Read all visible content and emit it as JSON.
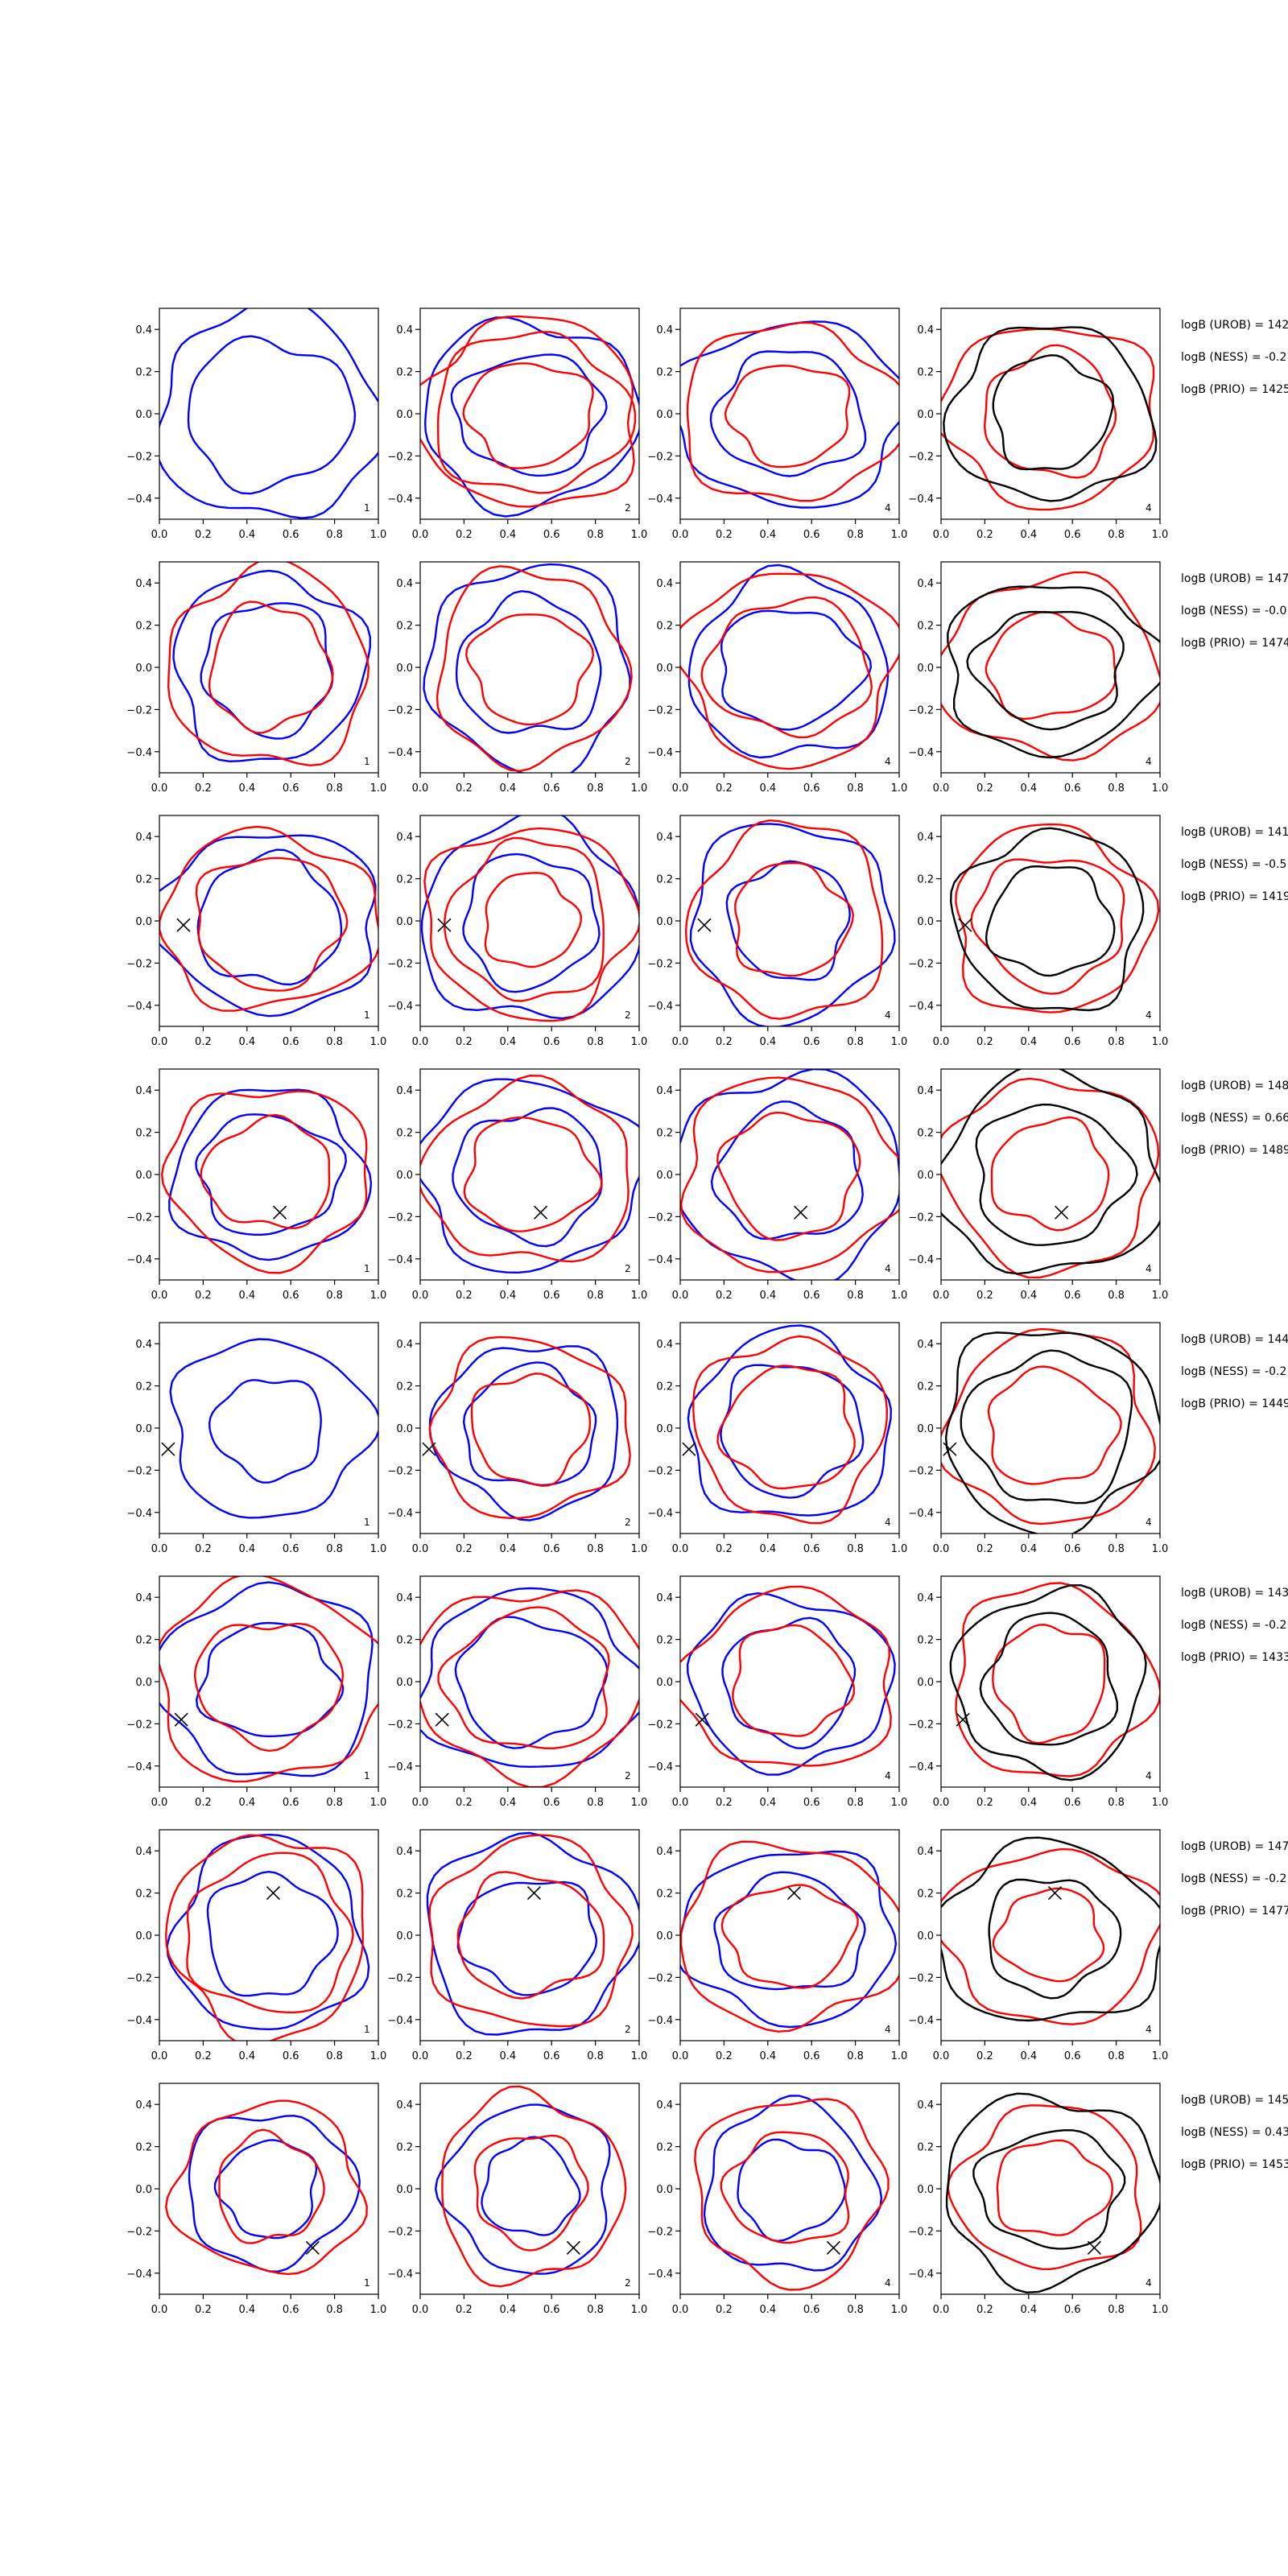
{
  "colors": {
    "series_a": "#0000ff",
    "series_b": "#ff0000",
    "series_c": "#000000",
    "marker": "#000000"
  },
  "chart_data": {
    "type": "contour-grid",
    "xlim": [
      0.0,
      1.0
    ],
    "ylim": [
      -0.5,
      0.5
    ],
    "x_ticks": [
      "0.0",
      "0.2",
      "0.4",
      "0.6",
      "0.8",
      "1.0"
    ],
    "y_ticks": [
      "0.4",
      "0.2",
      "0.0",
      "−0.2",
      "−0.4"
    ],
    "x_tick_values": [
      0.0,
      0.2,
      0.4,
      0.6,
      0.8,
      1.0
    ],
    "y_tick_values": [
      0.4,
      0.2,
      0.0,
      -0.2,
      -0.4
    ],
    "grid": false,
    "rows": [
      {
        "marker": null,
        "panel_labels": [
          "1",
          "2",
          "4",
          "4"
        ],
        "bayes": [
          "logB (UROB) = 142",
          "logB (NESS) = -0.2",
          "logB (PRIO) = 1425"
        ],
        "panels": [
          {
            "blue": [
              0.48,
              0.34
            ],
            "red": []
          },
          {
            "blue": [
              0.44,
              0.3
            ],
            "red": [
              0.45,
              0.4,
              0.27
            ]
          },
          {
            "blue": [
              0.47,
              0.32
            ],
            "red": [
              0.45,
              0.26
            ]
          },
          {
            "black": [
              0.44,
              0.27
            ],
            "red": [
              0.46,
              0.3
            ]
          }
        ]
      },
      {
        "marker": null,
        "panel_labels": [
          "1",
          "2",
          "4",
          "4"
        ],
        "bayes": [
          "logB (UROB) = 147",
          "logB (NESS) = -0.0",
          "logB (PRIO) = 1474"
        ],
        "panels": [
          {
            "blue": [
              0.44,
              0.3
            ],
            "red": [
              0.46,
              0.28
            ]
          },
          {
            "blue": [
              0.47,
              0.32
            ],
            "red": [
              0.44,
              0.26
            ]
          },
          {
            "blue": [
              0.44,
              0.3
            ],
            "red": [
              0.47,
              0.34
            ]
          },
          {
            "black": [
              0.44,
              0.3
            ],
            "red": [
              0.46,
              0.26
            ]
          }
        ]
      },
      {
        "marker": [
          0.11,
          -0.02
        ],
        "panel_labels": [
          "1",
          "2",
          "4",
          "4"
        ],
        "bayes": [
          "logB (UROB) = 141",
          "logB (NESS) = -0.5",
          "logB (PRIO) = 1419"
        ],
        "panels": [
          {
            "blue": [
              0.45,
              0.3
            ],
            "red": [
              0.44,
              0.31
            ]
          },
          {
            "blue": [
              0.46,
              0.3
            ],
            "red": [
              0.44,
              0.36,
              0.22
            ]
          },
          {
            "blue": [
              0.45,
              0.28
            ],
            "red": [
              0.44,
              0.27
            ]
          },
          {
            "black": [
              0.44,
              0.28
            ],
            "red": [
              0.46,
              0.34
            ]
          }
        ]
      },
      {
        "marker": [
          0.55,
          -0.18
        ],
        "panel_labels": [
          "1",
          "2",
          "4",
          "4"
        ],
        "bayes": [
          "logB (UROB) = 148",
          "logB (NESS) = 0.66",
          "logB (PRIO) = 1489"
        ],
        "panels": [
          {
            "blue": [
              0.44,
              0.3
            ],
            "red": [
              0.46,
              0.27
            ]
          },
          {
            "blue": [
              0.47,
              0.3
            ],
            "red": [
              0.44,
              0.26
            ]
          },
          {
            "blue": [
              0.46,
              0.3
            ],
            "red": [
              0.44,
              0.28
            ]
          },
          {
            "black": [
              0.46,
              0.34
            ],
            "red": [
              0.44,
              0.26
            ]
          }
        ]
      },
      {
        "marker": [
          0.04,
          -0.1
        ],
        "panel_labels": [
          "1",
          "2",
          "4",
          "4"
        ],
        "bayes": [
          "logB (UROB) = 144",
          "logB (NESS) = -0.2",
          "logB (PRIO) = 1449"
        ],
        "panels": [
          {
            "blue": [
              0.44,
              0.26
            ],
            "red": []
          },
          {
            "blue": [
              0.44,
              0.3
            ],
            "red": [
              0.46,
              0.27
            ]
          },
          {
            "blue": [
              0.46,
              0.3
            ],
            "red": [
              0.44,
              0.28
            ]
          },
          {
            "black": [
              0.46,
              0.34
            ],
            "red": [
              0.44,
              0.26
            ]
          }
        ]
      },
      {
        "marker": [
          0.1,
          -0.18
        ],
        "panel_labels": [
          "1",
          "2",
          "4",
          "4"
        ],
        "bayes": [
          "logB (UROB) = 143",
          "logB (NESS) = -0.2",
          "logB (PRIO) = 1433"
        ],
        "panels": [
          {
            "blue": [
              0.44,
              0.28
            ],
            "red": [
              0.46,
              0.3
            ]
          },
          {
            "blue": [
              0.45,
              0.32
            ],
            "red": [
              0.47,
              0.36
            ]
          },
          {
            "blue": [
              0.44,
              0.3
            ],
            "red": [
              0.46,
              0.27
            ]
          },
          {
            "black": [
              0.44,
              0.3
            ],
            "red": [
              0.46,
              0.26
            ]
          }
        ]
      },
      {
        "marker": [
          0.52,
          0.2
        ],
        "panel_labels": [
          "1",
          "2",
          "4",
          "4"
        ],
        "bayes": [
          "logB (UROB) = 147",
          "logB (NESS) = -0.2",
          "logB (PRIO) = 1477"
        ],
        "panels": [
          {
            "blue": [
              0.44,
              0.28
            ],
            "red": [
              0.46,
              0.36
            ]
          },
          {
            "blue": [
              0.46,
              0.28
            ],
            "red": [
              0.44,
              0.3
            ]
          },
          {
            "blue": [
              0.44,
              0.3
            ],
            "red": [
              0.46,
              0.26
            ]
          },
          {
            "black": [
              0.46,
              0.28
            ],
            "red": [
              0.44,
              0.22
            ]
          }
        ]
      },
      {
        "marker": [
          0.7,
          -0.28
        ],
        "panel_labels": [
          "1",
          "2",
          "4",
          "4"
        ],
        "bayes": [
          "logB (UROB) = 145",
          "logB (NESS) = 0.43",
          "logB (PRIO) = 1453"
        ],
        "panels": [
          {
            "blue": [
              0.36,
              0.22
            ],
            "red": [
              0.4,
              0.24
            ]
          },
          {
            "blue": [
              0.38,
              0.22
            ],
            "red": [
              0.42,
              0.26
            ]
          },
          {
            "blue": [
              0.4,
              0.24
            ],
            "red": [
              0.44,
              0.28
            ]
          },
          {
            "black": [
              0.48,
              0.3
            ],
            "red": [
              0.42,
              0.24
            ]
          }
        ]
      }
    ]
  }
}
